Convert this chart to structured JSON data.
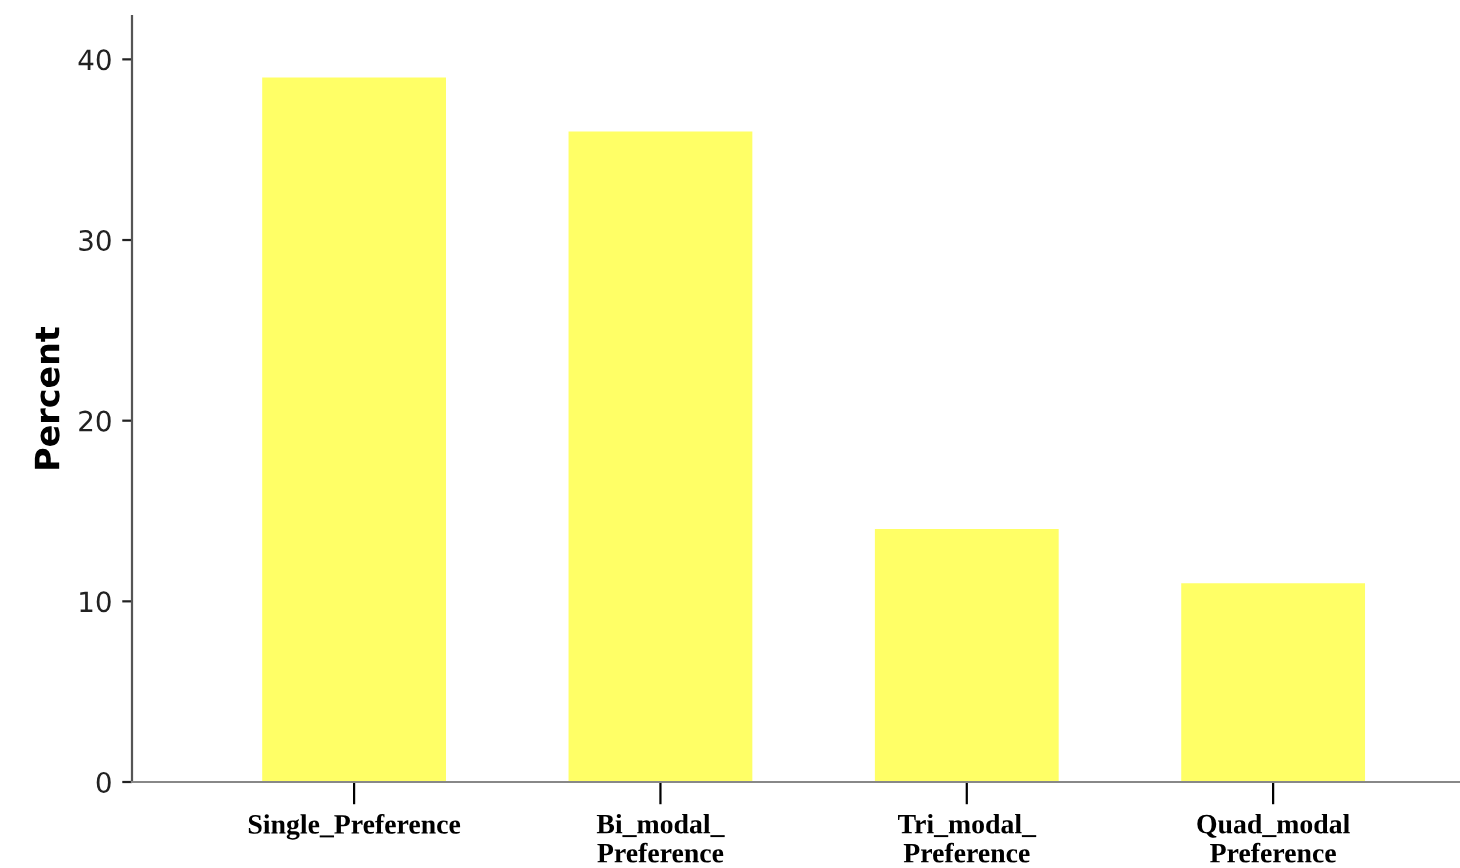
{
  "chart_data": {
    "type": "bar",
    "ylabel": "Percent",
    "categories": [
      "Single_Preference",
      "Bi_modal_\nPreference",
      "Tri_modal_\nPreference",
      "Quad_modal\nPreference"
    ],
    "values": [
      39,
      36,
      14,
      11
    ],
    "color": "#ffff66",
    "ylim": [
      0,
      42.4
    ],
    "yticks": [
      0,
      10,
      20,
      30,
      40
    ],
    "grid": false
  }
}
